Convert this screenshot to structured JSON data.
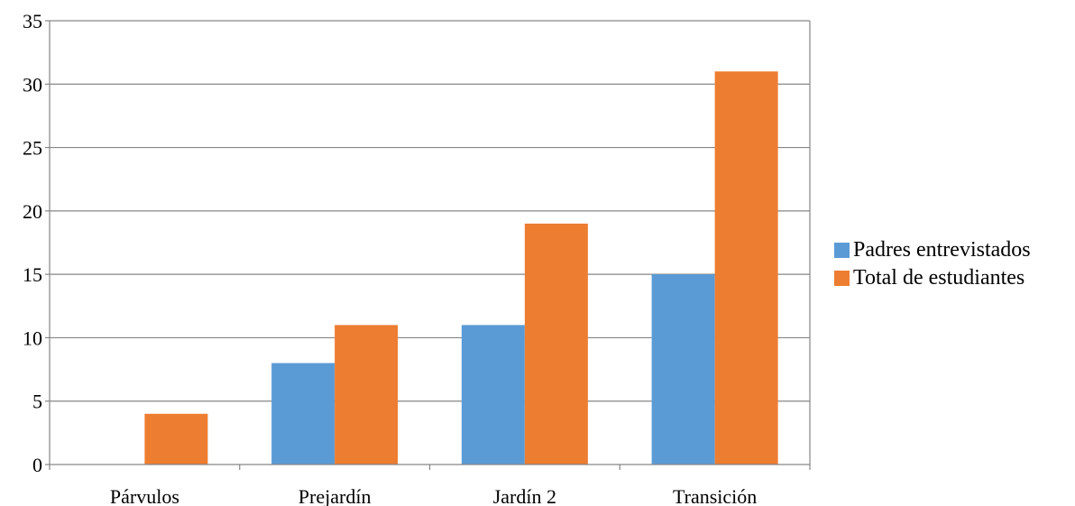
{
  "chart_data": {
    "type": "bar",
    "categories": [
      "Párvulos",
      "Prejardín",
      "Jardín 2",
      "Transición"
    ],
    "series": [
      {
        "name": "Padres entrevistados",
        "values": [
          0,
          8,
          11,
          15
        ],
        "color": "#5b9bd5"
      },
      {
        "name": "Total de estudiantes",
        "values": [
          4,
          11,
          19,
          31
        ],
        "color": "#ed7d31"
      }
    ],
    "ylim": [
      0,
      35
    ],
    "yticks": [
      0,
      5,
      10,
      15,
      20,
      25,
      30,
      35
    ],
    "grid": true,
    "legend_position": "right"
  }
}
